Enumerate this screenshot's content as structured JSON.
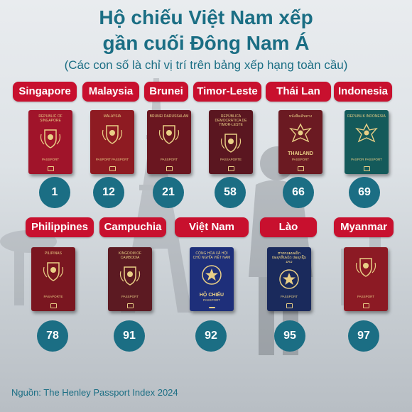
{
  "title_line1": "Hộ chiếu Việt Nam xếp",
  "title_line2": "gần cuối Đông Nam Á",
  "subtitle": "(Các con số là chỉ vị trí trên bảng xếp hạng toàn cầu)",
  "source": "Nguồn: The Henley Passport Index 2024",
  "colors": {
    "label_bg": "#c8102e",
    "rank_bg": "#1b6e84",
    "title": "#1b6e84"
  },
  "countries": [
    {
      "name": "Singapore",
      "rank": "1",
      "cover_color": "#a0142a",
      "cover_top": "REPUBLIC OF SINGAPORE",
      "cover_mid": "",
      "cover_bottom": "PASSPORT",
      "emblem": "coat-of-arms-icon"
    },
    {
      "name": "Malaysia",
      "rank": "12",
      "cover_color": "#8e1b22",
      "cover_top": "MALAYSIA",
      "cover_mid": "",
      "cover_bottom": "PASPORT PASSPORT",
      "emblem": "coat-of-arms-icon"
    },
    {
      "name": "Brunei",
      "rank": "21",
      "cover_color": "#6a1620",
      "cover_top": "BRUNEI DARUSSALAM",
      "cover_mid": "",
      "cover_bottom": "PASSPORT",
      "emblem": "coat-of-arms-icon"
    },
    {
      "name": "Timor-Leste",
      "rank": "58",
      "cover_color": "#5a1620",
      "cover_top": "REPÚBLICA DEMOCRÁTICA DE TIMOR-LESTE",
      "cover_mid": "",
      "cover_bottom": "PASSAPORTE",
      "emblem": "coat-of-arms-icon"
    },
    {
      "name": "Thái Lan",
      "rank": "66",
      "cover_color": "#6b1a22",
      "cover_top": "หนังสือเดินทาง",
      "cover_mid": "THAILAND",
      "cover_bottom": "PASSPORT",
      "emblem": "garuda-icon"
    },
    {
      "name": "Indonesia",
      "rank": "69",
      "cover_color": "#145a5a",
      "cover_top": "REPUBLIK INDONESIA",
      "cover_mid": "",
      "cover_bottom": "PASPOR PASSPORT",
      "emblem": "garuda-icon"
    },
    {
      "name": "Philippines",
      "rank": "78",
      "cover_color": "#7a1620",
      "cover_top": "PILIPINAS",
      "cover_mid": "",
      "cover_bottom": "PASAPORTE",
      "emblem": "coat-of-arms-icon"
    },
    {
      "name": "Campuchia",
      "rank": "91",
      "cover_color": "#5c1a22",
      "cover_top": "KINGDOM OF CAMBODIA",
      "cover_mid": "",
      "cover_bottom": "PASSPORT",
      "emblem": "coat-of-arms-icon"
    },
    {
      "name": "Việt Nam",
      "rank": "92",
      "cover_color": "#1e2f7a",
      "cover_top": "CỘNG HÒA XÃ HỘI CHỦ NGHĨA VIỆT NAM",
      "cover_mid": "HỘ CHIẾU",
      "cover_bottom": "PASSPORT",
      "emblem": "national-emblem-icon"
    },
    {
      "name": "Lào",
      "rank": "95",
      "cover_color": "#1a2a5c",
      "cover_top": "ສາທາລະນະລັດ ປະຊາທິປະໄຕ ປະຊາຊົນລາວ",
      "cover_mid": "",
      "cover_bottom": "PASSPORT",
      "emblem": "national-emblem-icon"
    },
    {
      "name": "Myanmar",
      "rank": "97",
      "cover_color": "#8c1a24",
      "cover_top": "",
      "cover_mid": "",
      "cover_bottom": "PASSPORT",
      "emblem": "coat-of-arms-icon"
    }
  ]
}
